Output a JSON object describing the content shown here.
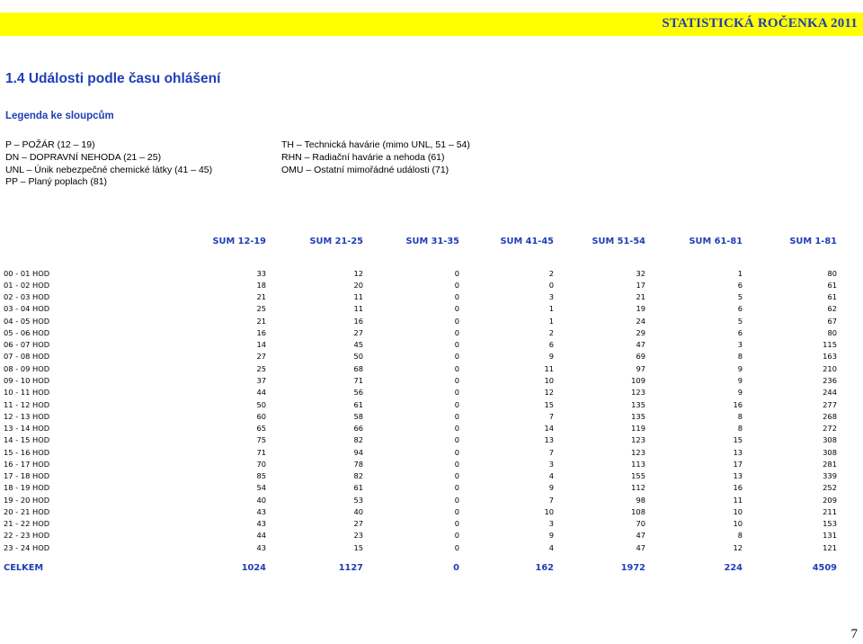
{
  "header": {
    "title": "STATISTICKÁ ROČENKA 2011",
    "bar_color": "#ffff00",
    "accent": "#1f3eb6"
  },
  "section_title": "1.4  Události podle času ohlášení",
  "legend": {
    "heading": "Legenda ke sloupcům",
    "left": [
      "P  – POŽÁR (12 – 19)",
      "DN  – DOPRAVNÍ NEHODA (21 – 25)",
      "UNL – Únik nebezpečné chemické látky (41 – 45)",
      "PP  – Planý poplach (81)"
    ],
    "right": [
      "TH  – Technická havárie (mimo UNL, 51 – 54)",
      "RHN  – Radiační havárie a nehoda (61)",
      "OMU  – Ostatní mimořádné události (71)"
    ]
  },
  "table": {
    "headers": [
      "",
      "SUM 12-19",
      "SUM 21-25",
      "SUM 31-35",
      "SUM 41-45",
      "SUM 51-54",
      "SUM 61-81",
      "SUM 1-81"
    ],
    "rows": [
      [
        "00 - 01 HOD",
        "33",
        "12",
        "0",
        "2",
        "32",
        "1",
        "80"
      ],
      [
        "01 - 02 HOD",
        "18",
        "20",
        "0",
        "0",
        "17",
        "6",
        "61"
      ],
      [
        "02 - 03 HOD",
        "21",
        "11",
        "0",
        "3",
        "21",
        "5",
        "61"
      ],
      [
        "03 - 04 HOD",
        "25",
        "11",
        "0",
        "1",
        "19",
        "6",
        "62"
      ],
      [
        "04 - 05 HOD",
        "21",
        "16",
        "0",
        "1",
        "24",
        "5",
        "67"
      ],
      [
        "05 - 06 HOD",
        "16",
        "27",
        "0",
        "2",
        "29",
        "6",
        "80"
      ],
      [
        "06 - 07 HOD",
        "14",
        "45",
        "0",
        "6",
        "47",
        "3",
        "115"
      ],
      [
        "07 - 08 HOD",
        "27",
        "50",
        "0",
        "9",
        "69",
        "8",
        "163"
      ],
      [
        "08 - 09 HOD",
        "25",
        "68",
        "0",
        "11",
        "97",
        "9",
        "210"
      ],
      [
        "09 - 10 HOD",
        "37",
        "71",
        "0",
        "10",
        "109",
        "9",
        "236"
      ],
      [
        "10 - 11 HOD",
        "44",
        "56",
        "0",
        "12",
        "123",
        "9",
        "244"
      ],
      [
        "11 - 12 HOD",
        "50",
        "61",
        "0",
        "15",
        "135",
        "16",
        "277"
      ],
      [
        "12 - 13 HOD",
        "60",
        "58",
        "0",
        "7",
        "135",
        "8",
        "268"
      ],
      [
        "13 - 14 HOD",
        "65",
        "66",
        "0",
        "14",
        "119",
        "8",
        "272"
      ],
      [
        "14 - 15 HOD",
        "75",
        "82",
        "0",
        "13",
        "123",
        "15",
        "308"
      ],
      [
        "15 - 16 HOD",
        "71",
        "94",
        "0",
        "7",
        "123",
        "13",
        "308"
      ],
      [
        "16 - 17 HOD",
        "70",
        "78",
        "0",
        "3",
        "113",
        "17",
        "281"
      ],
      [
        "17 - 18 HOD",
        "85",
        "82",
        "0",
        "4",
        "155",
        "13",
        "339"
      ],
      [
        "18 - 19 HOD",
        "54",
        "61",
        "0",
        "9",
        "112",
        "16",
        "252"
      ],
      [
        "19 - 20 HOD",
        "40",
        "53",
        "0",
        "7",
        "98",
        "11",
        "209"
      ],
      [
        "20 - 21 HOD",
        "43",
        "40",
        "0",
        "10",
        "108",
        "10",
        "211"
      ],
      [
        "21 - 22 HOD",
        "43",
        "27",
        "0",
        "3",
        "70",
        "10",
        "153"
      ],
      [
        "22 - 23 HOD",
        "44",
        "23",
        "0",
        "9",
        "47",
        "8",
        "131"
      ],
      [
        "23 - 24 HOD",
        "43",
        "15",
        "0",
        "4",
        "47",
        "12",
        "121"
      ]
    ],
    "total": [
      "CELKEM",
      "1024",
      "1127",
      "0",
      "162",
      "1972",
      "224",
      "4509"
    ]
  },
  "page_number": "7"
}
